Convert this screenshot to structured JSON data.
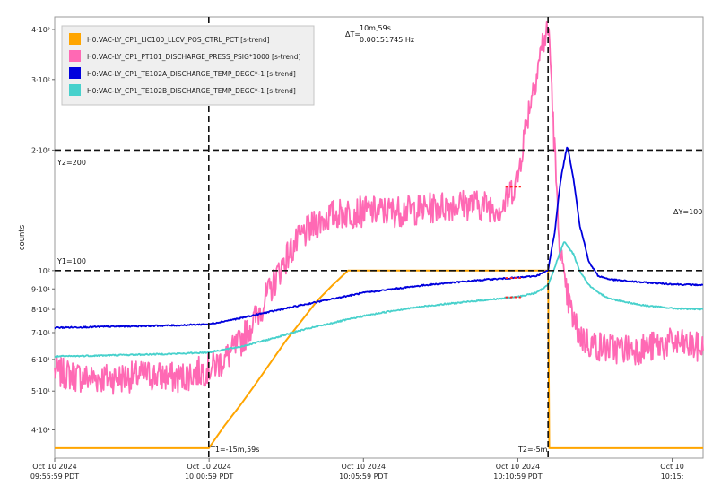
{
  "chart_data": {
    "type": "line",
    "ylabel": "counts",
    "yscale": "log",
    "ylim": [
      34,
      430
    ],
    "xlim_minutes": [
      0,
      21
    ],
    "grid": false,
    "legend_placement": "top-left",
    "y_ticks": [
      {
        "value": 40,
        "label": "4·10¹"
      },
      {
        "value": 50,
        "label": "5·10¹"
      },
      {
        "value": 60,
        "label": "6·10¹"
      },
      {
        "value": 70,
        "label": "7·10¹"
      },
      {
        "value": 80,
        "label": "8·10¹"
      },
      {
        "value": 90,
        "label": "9·10¹"
      },
      {
        "value": 100,
        "label": "10²"
      },
      {
        "value": 200,
        "label": "2·10²"
      },
      {
        "value": 300,
        "label": "3·10²"
      },
      {
        "value": 400,
        "label": "4·10²"
      }
    ],
    "x_ticks": [
      {
        "minutes": 0,
        "line1": "Oct 10 2024",
        "line2": "09:55:59 PDT"
      },
      {
        "minutes": 5,
        "line1": "Oct 10 2024",
        "line2": "10:00:59 PDT"
      },
      {
        "minutes": 10,
        "line1": "Oct 10 2024",
        "line2": "10:05:59 PDT"
      },
      {
        "minutes": 15,
        "line1": "Oct 10 2024",
        "line2": "10:10:59 PDT"
      },
      {
        "minutes": 20,
        "line1": "Oct 10",
        "line2": "10:15:"
      }
    ],
    "cursors": {
      "t1": {
        "minutes": 4.99,
        "label": "T1=-15m,59s"
      },
      "t2": {
        "minutes": 15.98,
        "label": "T2=-5m"
      },
      "y1": {
        "value": 100,
        "label": "Y1=100"
      },
      "y2": {
        "value": 200,
        "label": "Y2=200"
      },
      "delta_t": {
        "label": "ΔT=",
        "value_line1": "10m,59s",
        "value_line2": "0.00151745 Hz"
      },
      "delta_y": {
        "label": "ΔY=100"
      }
    },
    "series": [
      {
        "name": "H0:VAC-LY_CP1_LIC100_LLCV_POS_CTRL_PCT [s-trend]",
        "color": "#FFA500",
        "x": [
          0,
          4.99,
          5.2,
          5.5,
          6.0,
          6.5,
          7.0,
          7.5,
          8.0,
          8.5,
          9.0,
          9.5,
          10.0,
          11.0,
          12.0,
          13.0,
          14.0,
          15.0,
          15.95,
          15.98,
          16.02,
          17.0,
          18.0,
          19.0,
          20.0,
          21.0
        ],
        "y": [
          36,
          36,
          38,
          41,
          46,
          52,
          59,
          67,
          75,
          84,
          92,
          100,
          100,
          100,
          100,
          100,
          100,
          100,
          100,
          100,
          36,
          36,
          36,
          36,
          36,
          36
        ]
      },
      {
        "name": "H0:VAC-LY_CP1_PT101_DISCHARGE_PRESS_PSIG*1000 [s-trend]",
        "color": "#FF69B4",
        "x": [
          0,
          1,
          2,
          3,
          4,
          4.99,
          5.5,
          6,
          6.5,
          7,
          7.5,
          8,
          8.5,
          9,
          9.5,
          10,
          11,
          12,
          13,
          14,
          14.5,
          15.0,
          15.3,
          15.6,
          15.8,
          16.0,
          16.15,
          16.3,
          16.5,
          16.8,
          17.0,
          17.3,
          17.6,
          18,
          19,
          20,
          21
        ],
        "y": [
          56,
          54,
          54,
          55,
          54,
          57,
          60,
          66,
          76,
          90,
          108,
          122,
          132,
          138,
          140,
          141,
          141,
          143,
          147,
          146,
          143,
          170,
          240,
          310,
          370,
          400,
          230,
          130,
          92,
          75,
          69,
          66,
          65,
          64,
          64,
          66,
          64
        ]
      },
      {
        "name": "H0:VAC-LY_CP1_TE102A_DISCHARGE_TEMP_DEGC*-1 [s-trend]",
        "color": "#0000DD",
        "x": [
          0,
          2,
          4,
          4.99,
          6,
          7,
          8,
          9,
          10,
          11,
          12,
          13,
          14,
          15,
          15.6,
          15.98,
          16.2,
          16.4,
          16.6,
          16.8,
          17.0,
          17.3,
          17.6,
          18.0,
          19.0,
          20.0,
          21.0
        ],
        "y": [
          72,
          72.5,
          73,
          73.5,
          76,
          79,
          82,
          85,
          88,
          90,
          92,
          93.5,
          95,
          96,
          97,
          100,
          125,
          170,
          205,
          170,
          130,
          105,
          97,
          95,
          93.5,
          92.5,
          92
        ]
      },
      {
        "name": "H0:VAC-LY_CP1_TE102B_DISCHARGE_TEMP_DEGC*-1 [s-trend]",
        "color": "#48D1CC",
        "x": [
          0,
          2,
          4,
          4.99,
          6,
          7,
          8,
          9,
          10,
          11,
          12,
          13,
          14,
          15,
          15.6,
          15.98,
          16.2,
          16.5,
          16.8,
          17.0,
          17.3,
          17.6,
          18.0,
          19.0,
          20.0,
          21.0
        ],
        "y": [
          61,
          61.5,
          62,
          62.5,
          64.5,
          67.5,
          71,
          74,
          77,
          79.5,
          81.5,
          83,
          84.5,
          86,
          88,
          92,
          102,
          118,
          110,
          100,
          92,
          88,
          85,
          82,
          80.5,
          80
        ]
      }
    ]
  }
}
